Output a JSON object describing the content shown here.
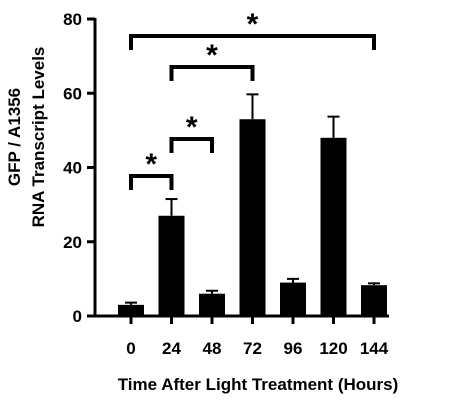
{
  "chart_data": {
    "type": "bar",
    "categories": [
      "0",
      "24",
      "48",
      "72",
      "96",
      "120",
      "144"
    ],
    "values": [
      3.0,
      27.0,
      6.0,
      53.0,
      9.0,
      48.0,
      8.3
    ],
    "error": [
      0.6,
      4.5,
      0.8,
      6.7,
      1.0,
      5.7,
      0.5
    ],
    "xlabel": "Time After Light Treatment (Hours)",
    "ylabel_line1": "GFP / A1356",
    "ylabel_line2": "RNA Transcript Levels",
    "ylim": [
      0,
      80
    ],
    "yticks": [
      "0",
      "20",
      "40",
      "60",
      "80"
    ],
    "grid": false,
    "significance": [
      {
        "from": "0",
        "to": "24",
        "label": "*"
      },
      {
        "from": "24",
        "to": "48",
        "label": "*"
      },
      {
        "from": "24",
        "to": "72",
        "label": "*"
      },
      {
        "from": "0",
        "to": "144",
        "label": "*"
      }
    ],
    "colors": {
      "bar": "#000000",
      "axis": "#000000"
    }
  }
}
